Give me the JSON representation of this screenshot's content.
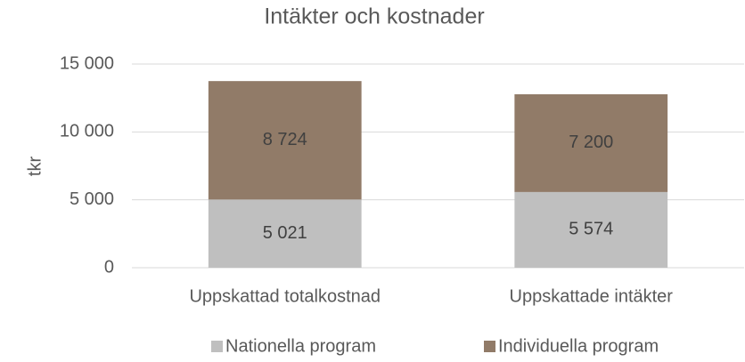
{
  "chart_data": {
    "type": "stacked_bar",
    "title": "Intäkter och kostnader",
    "y_label": "tkr",
    "categories": [
      "Uppskattad totalkostnad",
      "Uppskattade intäkter"
    ],
    "series": [
      {
        "name": "Nationella program",
        "color": "#bfbfbf",
        "values": [
          5021,
          5574
        ],
        "value_labels": [
          "5 021",
          "5 574"
        ]
      },
      {
        "name": "Individuella program",
        "color": "#917b68",
        "values": [
          8724,
          7200
        ],
        "value_labels": [
          "8 724",
          "7 200"
        ]
      }
    ],
    "ylim": [
      0,
      15000
    ],
    "yticks": [
      0,
      {
        "value": 5000,
        "label": "5 000"
      },
      {
        "value": 10000,
        "label": "10 000"
      },
      {
        "value": 15000,
        "label": "15 000"
      }
    ],
    "grid": true,
    "legend": "bottom"
  }
}
